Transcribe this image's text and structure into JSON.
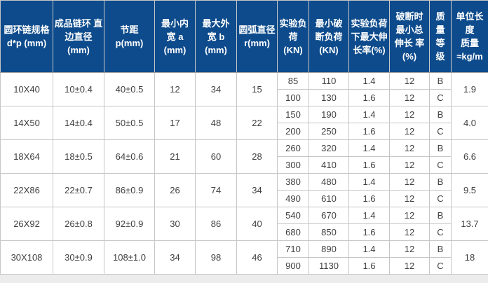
{
  "colors": {
    "header_bg": "#0d4b8c",
    "header_text": "#ffffff",
    "body_text": "#404040",
    "grid": "#c6c6c6",
    "group_line": "#9c9c9c",
    "outer_border": "#565656",
    "body_bg": "#ffffff",
    "page_bg": "#ececec"
  },
  "table": {
    "columns": [
      {
        "id": "spec",
        "label": "圆环链规格\nd*p (mm)"
      },
      {
        "id": "edge_dia",
        "label": "成品链环 直\n边直径\n(mm)"
      },
      {
        "id": "pitch",
        "label": "节距\np(mm)"
      },
      {
        "id": "min_inner_width",
        "label": "最小内\n宽 a\n(mm)"
      },
      {
        "id": "max_outer_width",
        "label": "最大外\n宽 b\n(mm)"
      },
      {
        "id": "arc_dia",
        "label": "圆弧直径\nr(mm)"
      },
      {
        "id": "test_load",
        "label": "实验负\n荷\n(KN)"
      },
      {
        "id": "min_break_load",
        "label": "最小破\n断负荷\n(KN)"
      },
      {
        "id": "max_elong_test",
        "label": "实验负荷\n下最大伸\n长率(%)"
      },
      {
        "id": "min_total_elong_break",
        "label": "破断时\n最小总\n伸长 率\n(%)"
      },
      {
        "id": "grade",
        "label": "质\n量\n等\n级"
      },
      {
        "id": "unit_mass",
        "label": "单位长度\n质量\n≈kg/m"
      }
    ],
    "groups": [
      {
        "spec": "10X40",
        "edge_dia": "10±0.4",
        "pitch": "40±0.5",
        "min_inner_width": "12",
        "max_outer_width": "34",
        "arc_dia": "15",
        "unit_mass": "1.9",
        "sub_rows": [
          {
            "test_load": "85",
            "min_break_load": "110",
            "max_elong_test": "1.4",
            "min_total_elong_break": "12",
            "grade": "B"
          },
          {
            "test_load": "100",
            "min_break_load": "130",
            "max_elong_test": "1.6",
            "min_total_elong_break": "12",
            "grade": "C"
          }
        ]
      },
      {
        "spec": "14X50",
        "edge_dia": "14±0.4",
        "pitch": "50±0.5",
        "min_inner_width": "17",
        "max_outer_width": "48",
        "arc_dia": "22",
        "unit_mass": "4.0",
        "sub_rows": [
          {
            "test_load": "150",
            "min_break_load": "190",
            "max_elong_test": "1.4",
            "min_total_elong_break": "12",
            "grade": "B"
          },
          {
            "test_load": "200",
            "min_break_load": "250",
            "max_elong_test": "1.6",
            "min_total_elong_break": "12",
            "grade": "C"
          }
        ]
      },
      {
        "spec": "18X64",
        "edge_dia": "18±0.5",
        "pitch": "64±0.6",
        "min_inner_width": "21",
        "max_outer_width": "60",
        "arc_dia": "28",
        "unit_mass": "6.6",
        "sub_rows": [
          {
            "test_load": "260",
            "min_break_load": "320",
            "max_elong_test": "1.4",
            "min_total_elong_break": "12",
            "grade": "B"
          },
          {
            "test_load": "300",
            "min_break_load": "410",
            "max_elong_test": "1.6",
            "min_total_elong_break": "12",
            "grade": "C"
          }
        ]
      },
      {
        "spec": "22X86",
        "edge_dia": "22±0.7",
        "pitch": "86±0.9",
        "min_inner_width": "26",
        "max_outer_width": "74",
        "arc_dia": "34",
        "unit_mass": "9.5",
        "sub_rows": [
          {
            "test_load": "380",
            "min_break_load": "480",
            "max_elong_test": "1.4",
            "min_total_elong_break": "12",
            "grade": "B"
          },
          {
            "test_load": "490",
            "min_break_load": "610",
            "max_elong_test": "1.6",
            "min_total_elong_break": "12",
            "grade": "C"
          }
        ]
      },
      {
        "spec": "26X92",
        "edge_dia": "26±0.8",
        "pitch": "92±0.9",
        "min_inner_width": "30",
        "max_outer_width": "86",
        "arc_dia": "40",
        "unit_mass": "13.7",
        "sub_rows": [
          {
            "test_load": "540",
            "min_break_load": "670",
            "max_elong_test": "1.4",
            "min_total_elong_break": "12",
            "grade": "B"
          },
          {
            "test_load": "680",
            "min_break_load": "850",
            "max_elong_test": "1.6",
            "min_total_elong_break": "12",
            "grade": "C"
          }
        ]
      },
      {
        "spec": "30X108",
        "edge_dia": "30±0.9",
        "pitch": "108±1.0",
        "min_inner_width": "34",
        "max_outer_width": "98",
        "arc_dia": "46",
        "unit_mass": "18",
        "sub_rows": [
          {
            "test_load": "710",
            "min_break_load": "890",
            "max_elong_test": "1.4",
            "min_total_elong_break": "12",
            "grade": "B"
          },
          {
            "test_load": "900",
            "min_break_load": "1130",
            "max_elong_test": "1.6",
            "min_total_elong_break": "12",
            "grade": "C"
          }
        ]
      }
    ]
  },
  "chart_data": {
    "type": "table",
    "columns": [
      "圆环链规格 d*p (mm)",
      "成品链环直边直径 (mm)",
      "节距 p(mm)",
      "最小内宽 a (mm)",
      "最大外宽 b (mm)",
      "圆弧直径 r(mm)",
      "实验负荷 (KN)",
      "最小破断负荷 (KN)",
      "实验负荷下最大伸长率(%)",
      "破断时最小总伸长率(%)",
      "质量等级",
      "单位长度质量 ≈kg/m"
    ],
    "rows": [
      [
        "10X40",
        "10±0.4",
        "40±0.5",
        "12",
        "34",
        "15",
        "85",
        "110",
        "1.4",
        "12",
        "B",
        "1.9"
      ],
      [
        "10X40",
        "10±0.4",
        "40±0.5",
        "12",
        "34",
        "15",
        "100",
        "130",
        "1.6",
        "12",
        "C",
        "1.9"
      ],
      [
        "14X50",
        "14±0.4",
        "50±0.5",
        "17",
        "48",
        "22",
        "150",
        "190",
        "1.4",
        "12",
        "B",
        "4.0"
      ],
      [
        "14X50",
        "14±0.4",
        "50±0.5",
        "17",
        "48",
        "22",
        "200",
        "250",
        "1.6",
        "12",
        "C",
        "4.0"
      ],
      [
        "18X64",
        "18±0.5",
        "64±0.6",
        "21",
        "60",
        "28",
        "260",
        "320",
        "1.4",
        "12",
        "B",
        "6.6"
      ],
      [
        "18X64",
        "18±0.5",
        "64±0.6",
        "21",
        "60",
        "28",
        "300",
        "410",
        "1.6",
        "12",
        "C",
        "6.6"
      ],
      [
        "22X86",
        "22±0.7",
        "86±0.9",
        "26",
        "74",
        "34",
        "380",
        "480",
        "1.4",
        "12",
        "B",
        "9.5"
      ],
      [
        "22X86",
        "22±0.7",
        "86±0.9",
        "26",
        "74",
        "34",
        "490",
        "610",
        "1.6",
        "12",
        "C",
        "9.5"
      ],
      [
        "26X92",
        "26±0.8",
        "92±0.9",
        "30",
        "86",
        "40",
        "540",
        "670",
        "1.4",
        "12",
        "B",
        "13.7"
      ],
      [
        "26X92",
        "26±0.8",
        "92±0.9",
        "30",
        "86",
        "40",
        "680",
        "850",
        "1.6",
        "12",
        "C",
        "13.7"
      ],
      [
        "30X108",
        "30±0.9",
        "108±1.0",
        "34",
        "98",
        "46",
        "710",
        "890",
        "1.4",
        "12",
        "B",
        "18"
      ],
      [
        "30X108",
        "30±0.9",
        "108±1.0",
        "34",
        "98",
        "46",
        "900",
        "1130",
        "1.6",
        "12",
        "C",
        "18"
      ]
    ]
  }
}
